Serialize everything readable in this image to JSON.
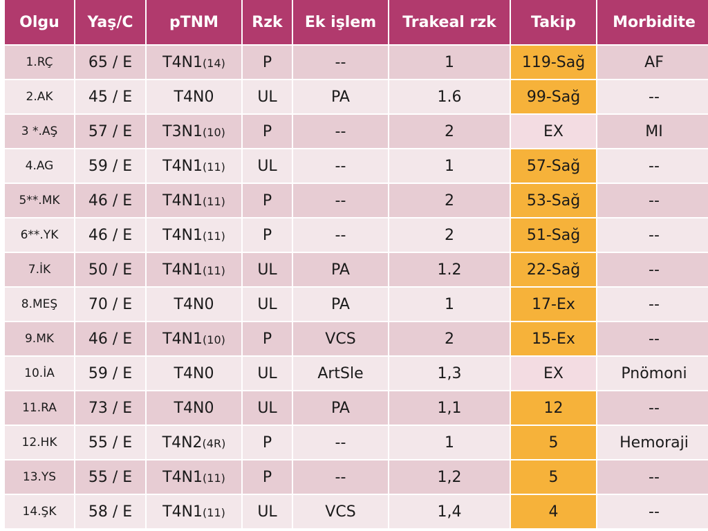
{
  "headers": [
    "Olgu",
    "Yaş/C",
    "pTNM",
    "Rzk",
    "Ek işlem",
    "Trakeal rzk",
    "Takip",
    "Morbidite"
  ],
  "colors": {
    "header": "#b13a6d",
    "row_odd": "#e7ccd3",
    "row_even": "#f3e7ea",
    "takip_highlight": "#f6b23a",
    "takip_plain": "#f3dce2"
  },
  "rows": [
    {
      "olgu": "1.RÇ",
      "yas": "65 / E",
      "ptnm": "T4N1",
      "ptnm_sub": "(14)",
      "rzk": "P",
      "ek": "--",
      "trakeal": "1",
      "takip": "119-Sağ",
      "takip_hl": true,
      "morbidite": "AF"
    },
    {
      "olgu": "2.AK",
      "yas": "45 / E",
      "ptnm": "T4N0",
      "ptnm_sub": "",
      "rzk": "UL",
      "ek": "PA",
      "trakeal": "1.6",
      "takip": "99-Sağ",
      "takip_hl": true,
      "morbidite": "--"
    },
    {
      "olgu": "3 *.AŞ",
      "yas": "57 / E",
      "ptnm": "T3N1",
      "ptnm_sub": "(10)",
      "rzk": "P",
      "ek": "--",
      "trakeal": "2",
      "takip": "EX",
      "takip_hl": false,
      "morbidite": "MI"
    },
    {
      "olgu": "4.AG",
      "yas": "59 / E",
      "ptnm": "T4N1",
      "ptnm_sub": "(11)",
      "rzk": "UL",
      "ek": "--",
      "trakeal": "1",
      "takip": "57-Sağ",
      "takip_hl": true,
      "morbidite": "--"
    },
    {
      "olgu": "5**.MK",
      "yas": "46 / E",
      "ptnm": "T4N1",
      "ptnm_sub": "(11)",
      "rzk": "P",
      "ek": "--",
      "trakeal": "2",
      "takip": "53-Sağ",
      "takip_hl": true,
      "morbidite": "--"
    },
    {
      "olgu": "6**.YK",
      "yas": "46 / E",
      "ptnm": "T4N1",
      "ptnm_sub": "(11)",
      "rzk": "P",
      "ek": "--",
      "trakeal": "2",
      "takip": "51-Sağ",
      "takip_hl": true,
      "morbidite": "--"
    },
    {
      "olgu": "7.İK",
      "yas": "50 / E",
      "ptnm": "T4N1",
      "ptnm_sub": "(11)",
      "rzk": "UL",
      "ek": "PA",
      "trakeal": "1.2",
      "takip": "22-Sağ",
      "takip_hl": true,
      "morbidite": "--"
    },
    {
      "olgu": "8.MEŞ",
      "yas": "70 / E",
      "ptnm": "T4N0",
      "ptnm_sub": "",
      "rzk": "UL",
      "ek": "PA",
      "trakeal": "1",
      "takip": "17-Ex",
      "takip_hl": true,
      "morbidite": "--"
    },
    {
      "olgu": "9.MK",
      "yas": "46 / E",
      "ptnm": "T4N1",
      "ptnm_sub": "(10)",
      "rzk": "P",
      "ek": "VCS",
      "trakeal": "2",
      "takip": "15-Ex",
      "takip_hl": true,
      "morbidite": "--"
    },
    {
      "olgu": "10.İA",
      "yas": "59 / E",
      "ptnm": "T4N0",
      "ptnm_sub": "",
      "rzk": "UL",
      "ek": "ArtSle",
      "trakeal": "1,3",
      "takip": "EX",
      "takip_hl": false,
      "morbidite": "Pnömoni"
    },
    {
      "olgu": "11.RA",
      "yas": "73 / E",
      "ptnm": "T4N0",
      "ptnm_sub": "",
      "rzk": "UL",
      "ek": "PA",
      "trakeal": "1,1",
      "takip": "12",
      "takip_hl": true,
      "morbidite": "--"
    },
    {
      "olgu": "12.HK",
      "yas": "55 / E",
      "ptnm": "T4N2",
      "ptnm_sub": "(4R)",
      "rzk": "P",
      "ek": "--",
      "trakeal": "1",
      "takip": "5",
      "takip_hl": true,
      "morbidite": "Hemoraji"
    },
    {
      "olgu": "13.YS",
      "yas": "55 / E",
      "ptnm": "T4N1",
      "ptnm_sub": "(11)",
      "rzk": "P",
      "ek": "--",
      "trakeal": "1,2",
      "takip": "5",
      "takip_hl": true,
      "morbidite": "--"
    },
    {
      "olgu": "14.ŞK",
      "yas": "58 / E",
      "ptnm": "T4N1",
      "ptnm_sub": "(11)",
      "rzk": "UL",
      "ek": "VCS",
      "trakeal": "1,4",
      "takip": "4",
      "takip_hl": true,
      "morbidite": "--"
    }
  ]
}
